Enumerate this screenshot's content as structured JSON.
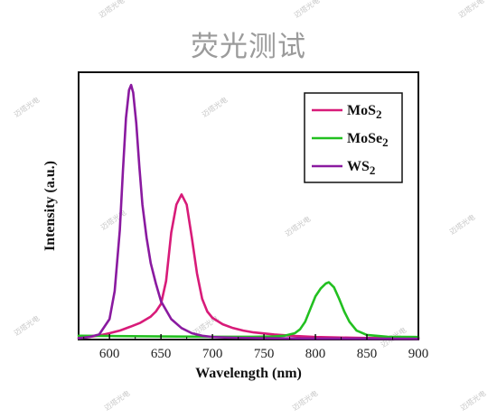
{
  "chart_data": {
    "type": "line",
    "title": "荧光测试",
    "xlabel": "Wavelength (nm)",
    "ylabel": "Intensity (a.u.)",
    "xlim": [
      570,
      900
    ],
    "ylim": [
      0,
      1.05
    ],
    "xticks": [
      600,
      650,
      700,
      750,
      800,
      850,
      900
    ],
    "yticks_shown": false,
    "legend": {
      "placement": "top-right"
    },
    "watermark": "迈塔光电",
    "series": [
      {
        "name": "MoS",
        "subscript": "2",
        "color": "#d81b79",
        "x": [
          570,
          580,
          590,
          600,
          610,
          620,
          630,
          640,
          645,
          650,
          655,
          660,
          665,
          670,
          675,
          680,
          685,
          690,
          695,
          700,
          710,
          720,
          730,
          740,
          760,
          780,
          800,
          820,
          850,
          900
        ],
        "y": [
          0.006,
          0.01,
          0.016,
          0.025,
          0.035,
          0.05,
          0.066,
          0.09,
          0.11,
          0.14,
          0.23,
          0.42,
          0.53,
          0.57,
          0.53,
          0.4,
          0.26,
          0.16,
          0.11,
          0.085,
          0.06,
          0.045,
          0.035,
          0.028,
          0.02,
          0.014,
          0.01,
          0.008,
          0.006,
          0.005
        ]
      },
      {
        "name": "MoSe",
        "subscript": "2",
        "color": "#22c020",
        "x": [
          570,
          600,
          650,
          700,
          740,
          760,
          770,
          780,
          785,
          790,
          795,
          800,
          805,
          810,
          813,
          818,
          823,
          828,
          833,
          840,
          850,
          870,
          900
        ],
        "y": [
          0.015,
          0.014,
          0.012,
          0.011,
          0.011,
          0.012,
          0.015,
          0.025,
          0.04,
          0.07,
          0.12,
          0.17,
          0.2,
          0.22,
          0.225,
          0.205,
          0.16,
          0.11,
          0.07,
          0.035,
          0.018,
          0.011,
          0.01
        ]
      },
      {
        "name": "WS",
        "subscript": "2",
        "color": "#8a1aa0",
        "x": [
          570,
          580,
          590,
          600,
          605,
          610,
          613,
          616,
          619,
          621,
          623,
          626,
          629,
          632,
          636,
          640,
          645,
          650,
          660,
          670,
          680,
          690,
          700,
          720,
          750,
          800,
          900
        ],
        "y": [
          0.005,
          0.01,
          0.02,
          0.08,
          0.19,
          0.43,
          0.66,
          0.87,
          0.98,
          1.0,
          0.97,
          0.85,
          0.68,
          0.53,
          0.4,
          0.3,
          0.22,
          0.15,
          0.08,
          0.045,
          0.025,
          0.015,
          0.01,
          0.007,
          0.005,
          0.004,
          0.003
        ]
      }
    ]
  }
}
